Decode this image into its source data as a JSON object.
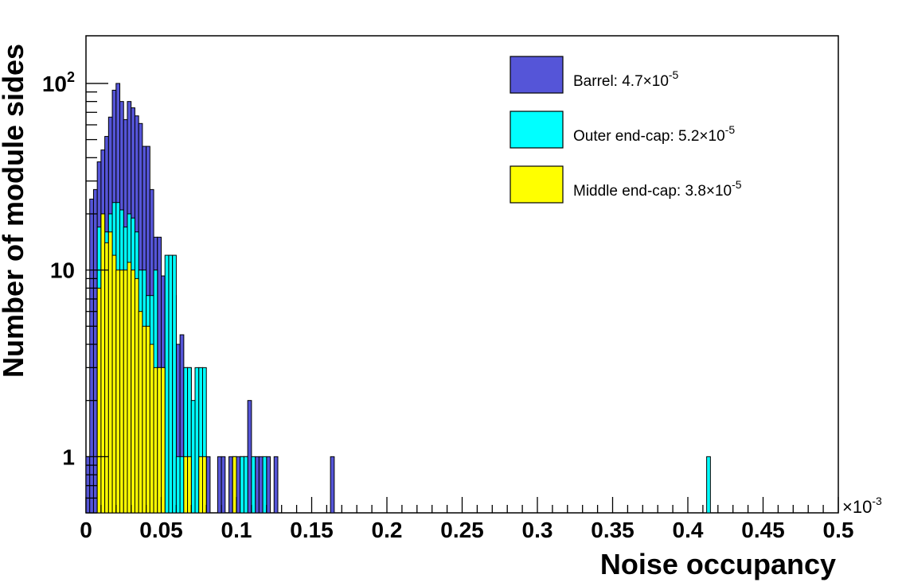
{
  "chart_data": {
    "type": "bar",
    "xlabel": "Noise occupancy",
    "ylabel": "Number of module sides",
    "x_scale_label": "×10",
    "x_scale_exp": "-3",
    "xlim": [
      0,
      0.5
    ],
    "ylim": [
      0.5,
      180
    ],
    "yscale": "log",
    "bin_width": 0.0025,
    "x_ticks": [
      "0",
      "0.05",
      "0.1",
      "0.15",
      "0.2",
      "0.25",
      "0.3",
      "0.35",
      "0.4",
      "0.45",
      "0.5"
    ],
    "y_ticks": [
      {
        "value": 1,
        "label": "1",
        "exp": ""
      },
      {
        "value": 10,
        "label": "10",
        "exp": ""
      },
      {
        "value": 100,
        "label": "10",
        "exp": "2"
      }
    ],
    "legend_position": "top-right",
    "series": [
      {
        "name": "Barrel",
        "legend": "Barrel: 4.7×10",
        "legend_exp": "-5",
        "color": "#5555d8",
        "values": [
          1,
          24,
          27,
          38,
          44,
          52,
          66,
          92,
          100,
          80,
          64,
          80,
          74,
          67,
          61,
          46,
          46,
          27,
          15,
          15,
          9.3,
          9.3,
          9.3,
          7.3,
          4,
          4.5,
          3,
          3,
          0,
          0,
          0,
          0,
          1,
          0,
          0,
          1,
          1,
          0,
          1,
          1,
          1,
          1,
          1,
          2,
          0,
          1,
          1,
          0,
          1,
          0,
          1,
          0,
          0,
          0,
          0,
          0,
          0,
          0,
          0,
          0,
          0,
          0,
          0,
          0,
          0,
          1,
          0,
          0,
          0,
          0,
          0,
          0,
          0,
          0,
          0,
          0,
          0,
          0,
          0,
          0,
          0,
          0,
          0,
          0,
          0,
          0,
          0,
          0,
          0,
          0,
          0,
          0,
          0,
          0,
          0,
          0,
          0,
          0,
          0,
          0,
          0,
          0,
          0,
          0,
          0,
          0,
          0,
          0,
          0,
          0,
          0,
          0,
          0,
          0,
          0,
          0,
          0,
          0,
          0,
          0,
          0,
          0,
          0,
          0,
          0,
          0,
          0,
          0,
          0,
          0,
          0,
          0,
          0,
          0,
          0,
          0,
          0,
          0,
          0,
          0,
          0,
          0,
          0,
          0,
          0,
          0,
          0,
          0,
          0,
          0,
          0,
          0,
          0,
          0,
          0,
          0,
          0,
          0,
          0,
          0,
          0,
          0,
          0,
          0,
          0,
          0,
          0,
          0,
          0,
          0,
          0,
          0,
          0,
          0,
          0,
          0,
          0,
          0,
          0,
          0,
          0,
          0,
          0,
          0,
          0,
          0,
          0,
          0,
          0,
          0,
          0,
          0,
          0,
          0,
          0,
          0
        ]
      },
      {
        "name": "Outer end-cap",
        "legend": "Outer end-cap: 5.2×10",
        "legend_exp": "-5",
        "color": "#00ffff",
        "values": [
          0,
          0,
          0,
          17,
          20,
          16,
          20,
          23,
          23,
          21,
          17,
          20,
          19,
          16,
          10,
          10,
          7.3,
          7.3,
          10,
          3,
          3,
          12,
          12,
          12,
          1,
          1,
          3,
          3,
          2,
          3,
          3,
          3,
          0,
          0,
          0,
          0,
          0,
          0,
          0,
          0,
          0,
          1,
          1,
          0,
          1,
          0,
          0,
          1,
          0,
          0,
          0,
          0,
          0,
          0,
          0,
          0,
          0,
          0,
          0,
          0,
          0,
          0,
          0,
          0,
          0,
          0,
          0,
          0,
          0,
          0,
          0,
          0,
          0,
          0,
          0,
          0,
          0,
          0,
          0,
          0,
          0,
          0,
          0,
          0,
          0,
          0,
          0,
          0,
          0,
          0,
          0,
          0,
          0,
          0,
          0,
          0,
          0,
          0,
          0,
          0,
          0,
          0,
          0,
          0,
          0,
          0,
          0,
          0,
          0,
          0,
          0,
          0,
          0,
          0,
          0,
          0,
          0,
          0,
          0,
          0,
          0,
          0,
          0,
          0,
          0,
          0,
          0,
          0,
          0,
          0,
          0,
          0,
          0,
          0,
          0,
          0,
          0,
          0,
          0,
          0,
          0,
          0,
          0,
          0,
          0,
          0,
          0,
          0,
          0,
          0,
          0,
          0,
          0,
          0,
          0,
          0,
          0,
          0,
          0,
          0,
          0,
          0,
          0,
          0,
          0,
          1,
          0,
          0,
          0,
          0,
          0,
          0,
          0,
          0,
          0,
          0,
          0,
          0,
          0,
          0,
          0,
          0,
          0,
          0,
          0,
          0,
          0,
          0,
          0,
          0,
          0,
          0,
          0,
          0,
          0,
          0,
          0,
          0,
          0,
          0
        ]
      },
      {
        "name": "Middle end-cap",
        "legend": "Middle end-cap: 3.8×10",
        "legend_exp": "-5",
        "color": "#ffff00",
        "values": [
          0,
          0,
          0,
          8,
          20,
          14,
          16,
          12,
          10,
          10,
          10,
          11,
          10,
          9,
          6,
          5,
          5,
          4,
          3,
          3,
          3,
          0,
          0,
          0,
          0,
          0,
          1,
          1,
          0,
          0,
          1,
          1,
          0,
          0,
          0,
          0,
          0,
          0,
          0,
          1,
          0,
          0,
          0,
          0,
          0,
          0,
          0,
          0,
          0,
          0,
          0,
          0,
          0,
          0,
          0,
          0,
          0,
          0,
          0,
          0,
          0,
          0,
          0,
          0,
          0,
          0,
          0,
          0,
          0,
          0,
          0,
          0,
          0,
          0,
          0,
          0,
          0,
          0,
          0,
          0,
          0,
          0,
          0,
          0,
          0,
          0,
          0,
          0,
          0,
          0,
          0,
          0,
          0,
          0,
          0,
          0,
          0,
          0,
          0,
          0,
          0,
          0,
          0,
          0,
          0,
          0,
          0,
          0,
          0,
          0,
          0,
          0,
          0,
          0,
          0,
          0,
          0,
          0,
          0,
          0,
          0,
          0,
          0,
          0,
          0,
          0,
          0,
          0,
          0,
          0,
          0,
          0,
          0,
          0,
          0,
          0,
          0,
          0,
          0,
          0,
          0,
          0,
          0,
          0,
          0,
          0,
          0,
          0,
          0,
          0,
          0,
          0,
          0,
          0,
          0,
          0,
          0,
          0,
          0,
          0,
          0,
          0,
          0,
          0,
          0,
          0,
          0,
          0,
          0,
          0,
          0,
          0,
          0,
          0,
          0,
          0,
          0,
          0,
          0,
          0,
          0,
          0,
          0,
          0,
          0,
          0,
          0,
          0,
          0,
          0,
          0,
          0,
          0,
          0,
          0,
          0,
          0,
          0,
          0,
          0,
          0,
          0,
          0,
          0
        ]
      }
    ]
  }
}
